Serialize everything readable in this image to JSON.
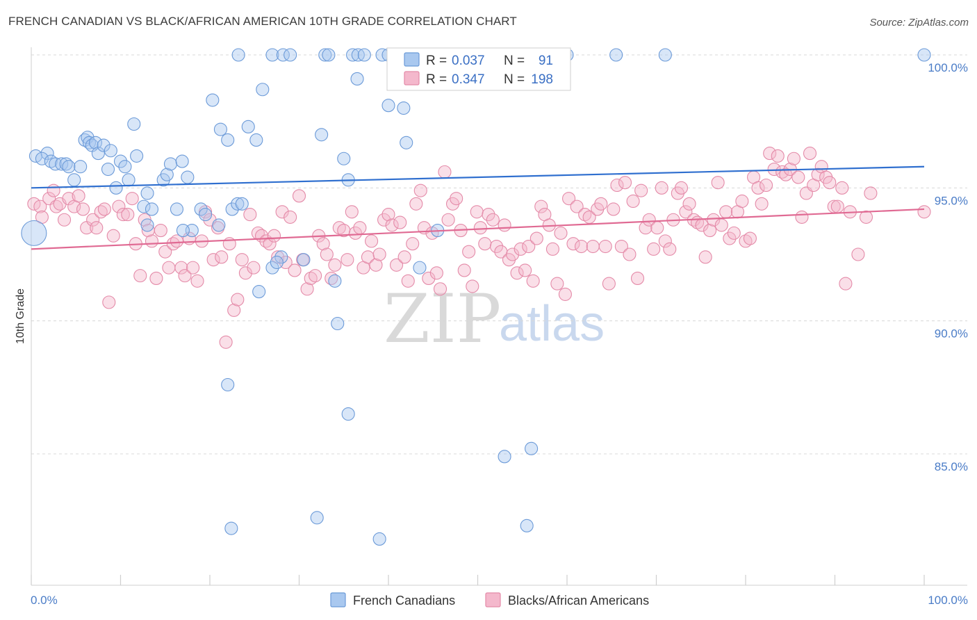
{
  "header": {
    "title": "FRENCH CANADIAN VS BLACK/AFRICAN AMERICAN 10TH GRADE CORRELATION CHART",
    "source": "Source: ZipAtlas.com"
  },
  "watermark": {
    "zip": "ZIP",
    "atlas": "atlas"
  },
  "colors": {
    "blue_fill": "#a9c8ef",
    "blue_stroke": "#6b9ad8",
    "blue_line": "#2f6fcf",
    "pink_fill": "#f4b8cc",
    "pink_stroke": "#e48aa8",
    "pink_line": "#e06a93",
    "tick_text": "#4a7cc7",
    "grid": "#d8d8d8"
  },
  "legend": {
    "rows": [
      {
        "r_label": "R =",
        "r_value": "0.037",
        "n_label": "N =",
        "n_value": "91"
      },
      {
        "r_label": "R =",
        "r_value": "0.347",
        "n_label": "N =",
        "n_value": "198"
      }
    ]
  },
  "bottom_legend": [
    "French Canadians",
    "Blacks/African Americans"
  ],
  "chart_data": {
    "type": "scatter",
    "title": "FRENCH CANADIAN VS BLACK/AFRICAN AMERICAN 10TH GRADE CORRELATION CHART",
    "xlabel": "",
    "ylabel": "10th Grade",
    "xlim": [
      0,
      100
    ],
    "ylim": [
      80.5,
      100.8
    ],
    "x_tick_labels": [
      "0.0%",
      "100.0%"
    ],
    "y_ticks": [
      85,
      90,
      95,
      100
    ],
    "y_tick_labels": [
      "85.0%",
      "90.0%",
      "95.0%",
      "100.0%"
    ],
    "grid": true,
    "legend_placement": "top-center",
    "series": [
      {
        "name": "French Canadians",
        "r": 0.037,
        "n": 91,
        "trend": [
          [
            0,
            95.0
          ],
          [
            100,
            95.8
          ]
        ],
        "points": [
          [
            0.5,
            96.2
          ],
          [
            1.8,
            96.3
          ],
          [
            1.2,
            96.1
          ],
          [
            2.2,
            96.0
          ],
          [
            2.7,
            95.9
          ],
          [
            3.4,
            95.9
          ],
          [
            3.9,
            95.9
          ],
          [
            4.2,
            95.8
          ],
          [
            4.8,
            95.3
          ],
          [
            5.5,
            95.8
          ],
          [
            6.0,
            96.8
          ],
          [
            6.3,
            96.9
          ],
          [
            6.5,
            96.7
          ],
          [
            6.8,
            96.6
          ],
          [
            7.2,
            96.7
          ],
          [
            7.5,
            96.3
          ],
          [
            8.1,
            96.6
          ],
          [
            8.6,
            95.7
          ],
          [
            8.9,
            96.4
          ],
          [
            9.5,
            95.0
          ],
          [
            10.0,
            96.0
          ],
          [
            10.5,
            95.8
          ],
          [
            10.9,
            95.3
          ],
          [
            11.5,
            97.4
          ],
          [
            11.8,
            96.2
          ],
          [
            12.6,
            94.3
          ],
          [
            13.0,
            94.8
          ],
          [
            13.5,
            94.2
          ],
          [
            14.8,
            95.3
          ],
          [
            15.2,
            95.5
          ],
          [
            15.6,
            95.9
          ],
          [
            16.3,
            94.2
          ],
          [
            16.9,
            96.0
          ],
          [
            17.5,
            95.4
          ],
          [
            18.0,
            93.4
          ],
          [
            19.0,
            94.2
          ],
          [
            19.5,
            94.0
          ],
          [
            20.3,
            98.3
          ],
          [
            21.2,
            97.2
          ],
          [
            22.0,
            96.8
          ],
          [
            22.5,
            94.2
          ],
          [
            23.1,
            94.4
          ],
          [
            23.6,
            94.4
          ],
          [
            24.3,
            97.3
          ],
          [
            25.2,
            96.8
          ],
          [
            25.9,
            98.7
          ],
          [
            27.0,
            100.0
          ],
          [
            23.2,
            100.0
          ],
          [
            28.2,
            100.0
          ],
          [
            29.0,
            100.0
          ],
          [
            32.9,
            100.0
          ],
          [
            33.3,
            100.0
          ],
          [
            36.0,
            100.0
          ],
          [
            36.6,
            100.0
          ],
          [
            37.3,
            100.0
          ],
          [
            39.3,
            100.0
          ],
          [
            40.0,
            100.0
          ],
          [
            46.0,
            100.0
          ],
          [
            47.0,
            100.0
          ],
          [
            60.0,
            100.0
          ],
          [
            65.5,
            100.0
          ],
          [
            71.0,
            100.0
          ],
          [
            100.0,
            100.0
          ],
          [
            36.5,
            99.1
          ],
          [
            40.0,
            98.1
          ],
          [
            41.7,
            98.0
          ],
          [
            42.0,
            96.7
          ],
          [
            32.5,
            97.0
          ],
          [
            35.0,
            96.1
          ],
          [
            35.5,
            95.3
          ],
          [
            13.0,
            93.6
          ],
          [
            17.0,
            93.4
          ],
          [
            21.0,
            93.6
          ],
          [
            27.0,
            92.0
          ],
          [
            28.0,
            92.4
          ],
          [
            30.5,
            92.3
          ],
          [
            34.0,
            91.5
          ],
          [
            34.3,
            89.9
          ],
          [
            25.5,
            91.1
          ],
          [
            27.5,
            92.2
          ],
          [
            35.5,
            86.5
          ],
          [
            43.5,
            92.0
          ],
          [
            45.5,
            93.4
          ],
          [
            53.0,
            84.9
          ],
          [
            56.0,
            85.2
          ],
          [
            22.0,
            87.6
          ],
          [
            22.4,
            82.2
          ],
          [
            32.0,
            82.6
          ],
          [
            39.0,
            81.8
          ],
          [
            55.5,
            82.3
          ],
          [
            0.3,
            93.3
          ]
        ]
      },
      {
        "name": "Blacks/African Americans",
        "r": 0.347,
        "n": 198,
        "trend": [
          [
            0,
            92.7
          ],
          [
            100,
            94.2
          ]
        ],
        "points": [
          [
            0.3,
            94.4
          ],
          [
            1.0,
            94.3
          ],
          [
            1.2,
            93.9
          ],
          [
            2.0,
            94.6
          ],
          [
            2.5,
            94.9
          ],
          [
            2.8,
            94.3
          ],
          [
            3.2,
            94.4
          ],
          [
            3.7,
            93.8
          ],
          [
            4.2,
            94.6
          ],
          [
            4.8,
            94.3
          ],
          [
            5.3,
            94.7
          ],
          [
            5.8,
            94.2
          ],
          [
            6.2,
            93.5
          ],
          [
            6.9,
            93.8
          ],
          [
            7.3,
            93.5
          ],
          [
            7.8,
            94.1
          ],
          [
            8.2,
            94.2
          ],
          [
            8.7,
            90.7
          ],
          [
            9.2,
            93.2
          ],
          [
            9.8,
            94.3
          ],
          [
            10.3,
            94.0
          ],
          [
            10.8,
            94.0
          ],
          [
            11.3,
            94.6
          ],
          [
            11.7,
            92.9
          ],
          [
            12.2,
            91.7
          ],
          [
            12.7,
            93.8
          ],
          [
            13.1,
            93.4
          ],
          [
            13.5,
            93.0
          ],
          [
            14.0,
            91.6
          ],
          [
            14.5,
            93.4
          ],
          [
            15.0,
            92.6
          ],
          [
            15.4,
            92.0
          ],
          [
            15.9,
            92.9
          ],
          [
            16.3,
            93.0
          ],
          [
            16.8,
            92.0
          ],
          [
            17.2,
            91.7
          ],
          [
            17.7,
            93.1
          ],
          [
            18.1,
            92.0
          ],
          [
            18.6,
            91.5
          ],
          [
            19.1,
            93.0
          ],
          [
            19.5,
            94.1
          ],
          [
            20.0,
            93.8
          ],
          [
            20.4,
            92.3
          ],
          [
            20.9,
            93.5
          ],
          [
            21.3,
            92.4
          ],
          [
            21.8,
            89.2
          ],
          [
            22.2,
            92.9
          ],
          [
            22.7,
            90.4
          ],
          [
            23.1,
            90.8
          ],
          [
            23.6,
            92.3
          ],
          [
            24.0,
            91.8
          ],
          [
            24.5,
            94.0
          ],
          [
            24.9,
            92.0
          ],
          [
            25.4,
            93.3
          ],
          [
            25.8,
            93.2
          ],
          [
            26.3,
            93.0
          ],
          [
            26.7,
            92.9
          ],
          [
            27.2,
            93.2
          ],
          [
            27.6,
            92.4
          ],
          [
            28.1,
            94.1
          ],
          [
            28.5,
            92.2
          ],
          [
            29.0,
            93.9
          ],
          [
            29.5,
            91.9
          ],
          [
            30.0,
            94.7
          ],
          [
            30.4,
            92.3
          ],
          [
            30.9,
            91.2
          ],
          [
            31.3,
            91.6
          ],
          [
            31.8,
            91.7
          ],
          [
            32.2,
            93.2
          ],
          [
            32.7,
            92.9
          ],
          [
            33.1,
            92.5
          ],
          [
            33.6,
            91.6
          ],
          [
            34.0,
            92.1
          ],
          [
            34.5,
            93.5
          ],
          [
            35.0,
            93.4
          ],
          [
            35.4,
            92.3
          ],
          [
            35.9,
            94.1
          ],
          [
            36.3,
            93.3
          ],
          [
            36.8,
            93.5
          ],
          [
            37.2,
            92.0
          ],
          [
            37.7,
            92.4
          ],
          [
            38.1,
            93.0
          ],
          [
            38.6,
            92.1
          ],
          [
            39.0,
            92.5
          ],
          [
            39.5,
            93.8
          ],
          [
            40.0,
            94.0
          ],
          [
            40.4,
            93.6
          ],
          [
            40.9,
            92.1
          ],
          [
            41.3,
            93.7
          ],
          [
            41.8,
            92.4
          ],
          [
            42.2,
            91.5
          ],
          [
            42.7,
            92.9
          ],
          [
            43.1,
            94.4
          ],
          [
            43.6,
            94.9
          ],
          [
            44.0,
            93.5
          ],
          [
            44.5,
            91.6
          ],
          [
            44.9,
            93.3
          ],
          [
            45.4,
            91.8
          ],
          [
            45.8,
            91.2
          ],
          [
            46.3,
            95.6
          ],
          [
            46.7,
            93.8
          ],
          [
            47.2,
            94.4
          ],
          [
            47.6,
            94.6
          ],
          [
            48.1,
            93.4
          ],
          [
            48.5,
            91.9
          ],
          [
            49.0,
            92.6
          ],
          [
            49.4,
            91.3
          ],
          [
            49.9,
            94.1
          ],
          [
            50.3,
            93.5
          ],
          [
            50.8,
            92.9
          ],
          [
            51.2,
            94.0
          ],
          [
            51.7,
            93.8
          ],
          [
            52.1,
            92.8
          ],
          [
            52.6,
            92.6
          ],
          [
            53.0,
            93.6
          ],
          [
            53.5,
            92.3
          ],
          [
            53.9,
            92.5
          ],
          [
            54.4,
            91.8
          ],
          [
            54.8,
            92.7
          ],
          [
            55.3,
            91.9
          ],
          [
            55.7,
            92.8
          ],
          [
            56.2,
            91.5
          ],
          [
            56.6,
            93.1
          ],
          [
            57.1,
            94.3
          ],
          [
            57.5,
            94.0
          ],
          [
            58.0,
            93.6
          ],
          [
            58.4,
            92.7
          ],
          [
            58.9,
            91.4
          ],
          [
            59.3,
            93.3
          ],
          [
            59.8,
            91.0
          ],
          [
            60.2,
            94.6
          ],
          [
            60.7,
            92.9
          ],
          [
            61.1,
            94.3
          ],
          [
            61.6,
            92.8
          ],
          [
            62.0,
            94.0
          ],
          [
            62.5,
            93.9
          ],
          [
            62.9,
            92.8
          ],
          [
            63.4,
            94.2
          ],
          [
            63.8,
            94.4
          ],
          [
            64.3,
            92.8
          ],
          [
            64.7,
            91.4
          ],
          [
            65.2,
            94.2
          ],
          [
            65.6,
            95.1
          ],
          [
            66.1,
            92.8
          ],
          [
            66.5,
            95.2
          ],
          [
            67.0,
            92.5
          ],
          [
            67.4,
            94.5
          ],
          [
            67.9,
            91.6
          ],
          [
            68.3,
            94.9
          ],
          [
            68.8,
            93.5
          ],
          [
            69.2,
            93.8
          ],
          [
            69.7,
            92.7
          ],
          [
            70.1,
            93.5
          ],
          [
            70.6,
            95.0
          ],
          [
            71.0,
            93.0
          ],
          [
            71.5,
            92.7
          ],
          [
            71.9,
            93.8
          ],
          [
            72.4,
            94.8
          ],
          [
            72.8,
            95.0
          ],
          [
            73.3,
            94.1
          ],
          [
            73.7,
            94.4
          ],
          [
            74.2,
            93.8
          ],
          [
            74.6,
            93.7
          ],
          [
            75.1,
            93.6
          ],
          [
            75.5,
            92.4
          ],
          [
            76.0,
            93.4
          ],
          [
            76.4,
            93.8
          ],
          [
            76.9,
            95.2
          ],
          [
            77.3,
            93.6
          ],
          [
            77.8,
            94.1
          ],
          [
            78.2,
            93.1
          ],
          [
            78.7,
            93.3
          ],
          [
            79.1,
            94.1
          ],
          [
            79.6,
            94.5
          ],
          [
            80.0,
            93.0
          ],
          [
            80.5,
            93.1
          ],
          [
            80.9,
            95.4
          ],
          [
            81.4,
            95.0
          ],
          [
            81.8,
            94.4
          ],
          [
            82.3,
            95.1
          ],
          [
            82.7,
            96.3
          ],
          [
            83.2,
            95.7
          ],
          [
            83.6,
            96.2
          ],
          [
            84.1,
            95.6
          ],
          [
            84.5,
            95.5
          ],
          [
            85.0,
            95.7
          ],
          [
            85.4,
            96.1
          ],
          [
            85.9,
            95.4
          ],
          [
            86.3,
            93.9
          ],
          [
            86.8,
            94.8
          ],
          [
            87.2,
            96.3
          ],
          [
            87.6,
            95.1
          ],
          [
            88.1,
            95.5
          ],
          [
            88.5,
            95.8
          ],
          [
            89.0,
            95.4
          ],
          [
            89.4,
            95.2
          ],
          [
            89.9,
            94.3
          ],
          [
            90.3,
            94.3
          ],
          [
            90.8,
            95.0
          ],
          [
            91.2,
            91.4
          ],
          [
            91.7,
            94.1
          ],
          [
            92.6,
            92.5
          ],
          [
            93.5,
            93.9
          ],
          [
            94.0,
            94.8
          ],
          [
            100.0,
            94.1
          ]
        ]
      }
    ]
  }
}
